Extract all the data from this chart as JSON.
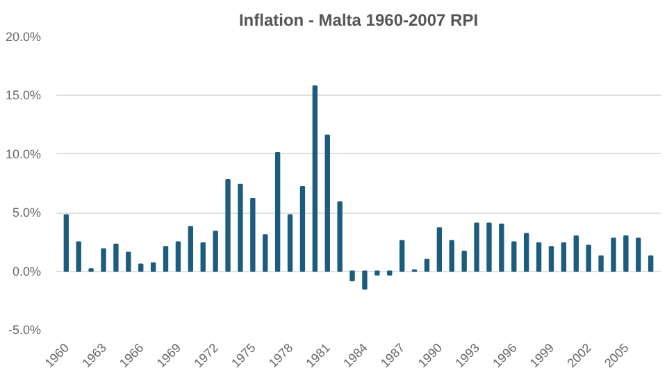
{
  "chart_data": {
    "type": "bar",
    "title": "Inflation - Malta 1960-2007 RPI",
    "categories": [
      "1960",
      null,
      null,
      "1963",
      null,
      null,
      "1966",
      null,
      null,
      "1969",
      null,
      null,
      "1972",
      null,
      null,
      "1975",
      null,
      null,
      "1978",
      null,
      null,
      "1981",
      null,
      null,
      "1984",
      null,
      null,
      "1987",
      null,
      null,
      "1990",
      null,
      null,
      "1993",
      null,
      null,
      "1996",
      null,
      null,
      "1999",
      null,
      null,
      "2002",
      null,
      null,
      "2005",
      null,
      null
    ],
    "values": [
      4.8,
      2.5,
      0.2,
      1.9,
      2.3,
      1.6,
      0.6,
      0.7,
      2.1,
      2.5,
      3.8,
      2.4,
      3.4,
      7.8,
      7.4,
      6.2,
      3.1,
      10.1,
      4.8,
      7.2,
      15.8,
      11.6,
      5.9,
      -0.8,
      -1.5,
      -0.3,
      -0.3,
      2.6,
      0.1,
      1.0,
      3.7,
      2.6,
      1.7,
      4.1,
      4.1,
      4.0,
      2.5,
      3.2,
      2.4,
      2.1,
      2.4,
      3.0,
      2.2,
      1.3,
      2.8,
      3.0,
      2.8,
      1.3
    ],
    "color": "#1c5c7e",
    "ylim": [
      -5,
      20
    ],
    "yticks": [
      {
        "value": -5,
        "label": "-5.0%"
      },
      {
        "value": 0,
        "label": "0.0%"
      },
      {
        "value": 5,
        "label": "5.0%"
      },
      {
        "value": 10,
        "label": "10.0%"
      },
      {
        "value": 15,
        "label": "15.0%"
      },
      {
        "value": 20,
        "label": "20.0%"
      }
    ],
    "grid": "y"
  }
}
